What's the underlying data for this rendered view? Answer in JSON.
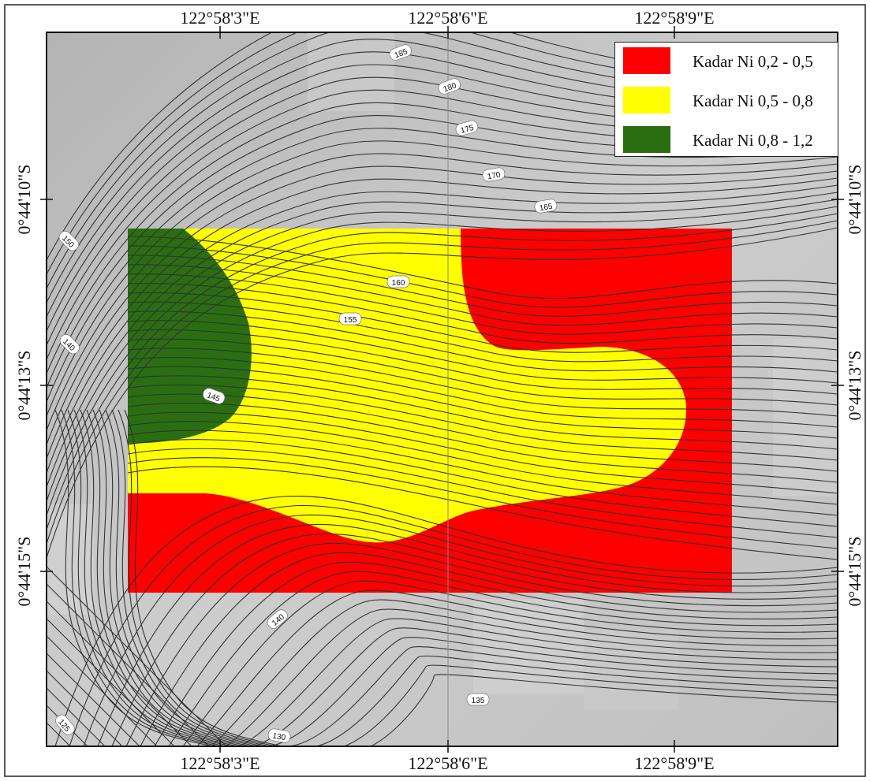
{
  "map": {
    "top_lon_labels": [
      "122°58'3\"E",
      "122°58'6\"E",
      "122°58'9\"E"
    ],
    "bottom_lon_labels": [
      "122°58'3\"E",
      "122°58'6\"E",
      "122°58'9\"E"
    ],
    "left_lat_labels": [
      "0°44'10\"S",
      "0°44'13\"S",
      "0°44'15\"S"
    ],
    "right_lat_labels": [
      "0°44'10\"S",
      "0°44'13\"S",
      "0°44'15\"S"
    ],
    "contour_labels": [
      "185",
      "180",
      "175",
      "170",
      "165",
      "150",
      "160",
      "155",
      "140",
      "145",
      "140",
      "135",
      "125",
      "130"
    ],
    "colors": {
      "low": "#ff0000",
      "mid": "#ffff00",
      "high": "#2a6e12",
      "contour": "#333333",
      "background": "#c4c4c4"
    }
  },
  "legend": {
    "items": [
      {
        "label": "Kadar Ni 0,2 - 0,5",
        "color": "#ff0000"
      },
      {
        "label": "Kadar Ni 0,5 - 0,8",
        "color": "#ffff00"
      },
      {
        "label": "Kadar Ni 0,8 - 1,2",
        "color": "#2a6e12"
      }
    ]
  }
}
